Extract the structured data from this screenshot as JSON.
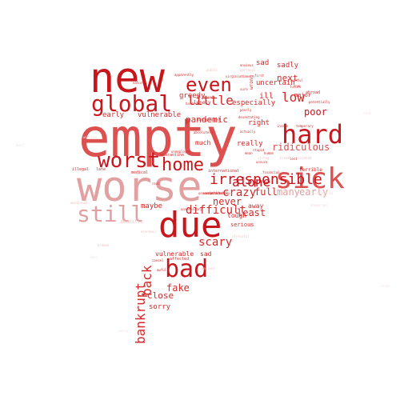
{
  "colors": {
    "deep": "#c8161d",
    "red": "#d42a2a",
    "salmon": "#dc5050",
    "pink": "#e2a0a0",
    "pale": "#eec3c3",
    "faint": "#f1dede"
  },
  "words": [
    {
      "text": "empty",
      "tone": "salmon"
    },
    {
      "text": "worse",
      "tone": "pink"
    },
    {
      "text": "new",
      "tone": "deep"
    },
    {
      "text": "due",
      "tone": "deep"
    },
    {
      "text": "global",
      "tone": "deep"
    },
    {
      "text": "sick",
      "tone": "salmon"
    },
    {
      "text": "hard",
      "tone": "deep"
    },
    {
      "text": "bad",
      "tone": "deep"
    },
    {
      "text": "still",
      "tone": "pink"
    },
    {
      "text": "worst",
      "tone": "deep"
    },
    {
      "text": "home",
      "tone": "deep"
    },
    {
      "text": "even",
      "tone": "deep"
    },
    {
      "text": "irresponsible",
      "tone": "deep"
    },
    {
      "text": "bankrupt",
      "tone": "red"
    },
    {
      "text": "back",
      "tone": "red"
    },
    {
      "text": "alone",
      "tone": "deep"
    },
    {
      "text": "little",
      "tone": "red"
    },
    {
      "text": "difficult",
      "tone": "red"
    },
    {
      "text": "low",
      "tone": "red"
    },
    {
      "text": "ridiculous",
      "tone": "salmon"
    },
    {
      "text": "crazy",
      "tone": "red"
    },
    {
      "text": "full",
      "tone": "red"
    },
    {
      "text": "many",
      "tone": "pink"
    },
    {
      "text": "early",
      "tone": "pink"
    },
    {
      "text": "scary",
      "tone": "red"
    },
    {
      "text": "poor",
      "tone": "deep"
    },
    {
      "text": "never",
      "tone": "red"
    },
    {
      "text": "least",
      "tone": "red"
    },
    {
      "text": "next",
      "tone": "red"
    },
    {
      "text": "pandemic",
      "tone": "red"
    },
    {
      "text": "early",
      "tone": "red"
    },
    {
      "text": "vulnerable",
      "tone": "red"
    },
    {
      "text": "greedy",
      "tone": "red"
    },
    {
      "text": "sad",
      "tone": "red"
    },
    {
      "text": "sadly",
      "tone": "red"
    },
    {
      "text": "ill",
      "tone": "red"
    },
    {
      "text": "uncertain",
      "tone": "red"
    },
    {
      "text": "especially",
      "tone": "red"
    },
    {
      "text": "right",
      "tone": "red"
    },
    {
      "text": "really",
      "tone": "red"
    },
    {
      "text": "fake",
      "tone": "red"
    },
    {
      "text": "close",
      "tone": "red"
    },
    {
      "text": "sorry",
      "tone": "red"
    },
    {
      "text": "maybe",
      "tone": "red"
    },
    {
      "text": "away",
      "tone": "red"
    },
    {
      "text": "tough",
      "tone": "red"
    },
    {
      "text": "vulnerable",
      "tone": "red"
    },
    {
      "text": "sad",
      "tone": "red"
    },
    {
      "text": "much",
      "tone": "red"
    },
    {
      "text": "major",
      "tone": "red"
    },
    {
      "text": "serious",
      "tone": "red"
    },
    {
      "text": "lonely",
      "tone": "red"
    },
    {
      "text": "wrong",
      "tone": "red"
    },
    {
      "text": "domestic",
      "tone": "pale"
    },
    {
      "text": "illegal",
      "tone": "red"
    },
    {
      "text": "late",
      "tone": "red"
    },
    {
      "text": "terrible",
      "tone": "red"
    },
    {
      "text": "abroad",
      "tone": "red"
    },
    {
      "text": "affected",
      "tone": "red"
    },
    {
      "text": "quarantine",
      "tone": "red"
    },
    {
      "text": "international",
      "tone": "red"
    },
    {
      "text": "medical",
      "tone": "red"
    },
    {
      "text": "public",
      "tone": "pale"
    },
    {
      "text": "personal",
      "tone": "pale"
    },
    {
      "text": "virginiatimes",
      "tone": "red"
    },
    {
      "text": "first",
      "tone": "red"
    },
    {
      "text": "future",
      "tone": "red"
    },
    {
      "text": "devastating",
      "tone": "red"
    },
    {
      "text": "insane",
      "tone": "red"
    },
    {
      "text": "temporary",
      "tone": "red"
    },
    {
      "text": "strong",
      "tone": "pale"
    },
    {
      "text": "financial",
      "tone": "red"
    },
    {
      "text": "uncomfortable",
      "tone": "red"
    },
    {
      "text": "absolutely",
      "tone": "red"
    },
    {
      "text": "disappointed",
      "tone": "red"
    },
    {
      "text": "unemployed",
      "tone": "red"
    },
    {
      "text": "economic",
      "tone": "pale"
    },
    {
      "text": "patient",
      "tone": "pale"
    },
    {
      "text": "stressful",
      "tone": "pale"
    },
    {
      "text": "awful",
      "tone": "red"
    },
    {
      "text": "cancel",
      "tone": "red"
    },
    {
      "text": "real",
      "tone": "red"
    },
    {
      "text": "already",
      "tone": "red"
    },
    {
      "text": "unfortunately",
      "tone": "red"
    },
    {
      "text": "actually",
      "tone": "red"
    },
    {
      "text": "human",
      "tone": "red"
    },
    {
      "text": "unacceptable",
      "tone": "red"
    },
    {
      "text": "unnecessary",
      "tone": "red"
    },
    {
      "text": "unsure",
      "tone": "red"
    },
    {
      "text": "mean",
      "tone": "red"
    },
    {
      "text": "potentially",
      "tone": "red"
    },
    {
      "text": "run",
      "tone": "red"
    },
    {
      "text": "nature",
      "tone": "red"
    },
    {
      "text": "sure",
      "tone": "red"
    },
    {
      "text": "apparently",
      "tone": "red"
    },
    {
      "text": "stupid",
      "tone": "red"
    },
    {
      "text": "lost",
      "tone": "red"
    },
    {
      "text": "hardest",
      "tone": "red"
    },
    {
      "text": "poorly",
      "tone": "red"
    },
    {
      "text": "anxious",
      "tone": "red"
    },
    {
      "text": "fearful",
      "tone": "red"
    },
    {
      "text": "emotional",
      "tone": "pale"
    },
    {
      "text": "isolated",
      "tone": "pale"
    },
    {
      "text": "bleak",
      "tone": "pale"
    },
    {
      "text": "broken",
      "tone": "pale"
    },
    {
      "text": "dangerous",
      "tone": "faint"
    },
    {
      "text": "unprepared",
      "tone": "faint"
    },
    {
      "text": "worried",
      "tone": "faint"
    },
    {
      "text": "risk",
      "tone": "faint"
    },
    {
      "text": "less",
      "tone": "faint"
    },
    {
      "text": "hurt",
      "tone": "faint"
    },
    {
      "text": "cruel",
      "tone": "faint"
    },
    {
      "text": "sorry",
      "tone": "faint"
    }
  ]
}
